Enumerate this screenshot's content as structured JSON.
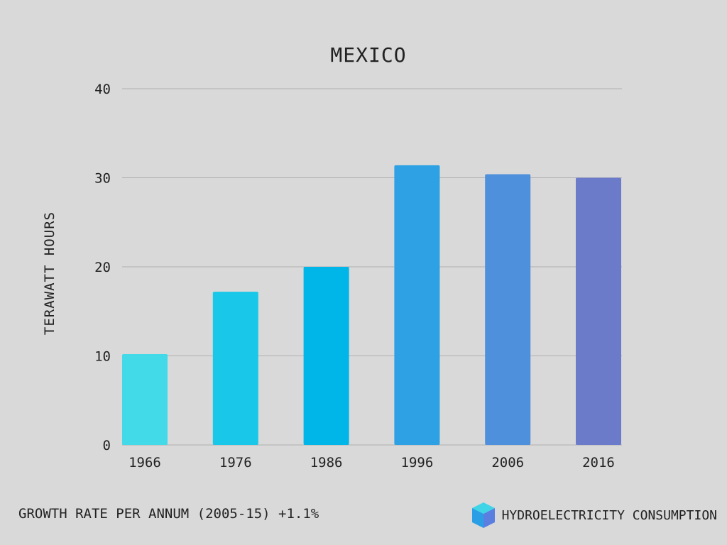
{
  "chart_data": {
    "type": "bar",
    "title": "MEXICO",
    "ylabel": "TERAWATT HOURS",
    "xlabel": "",
    "categories": [
      "1966",
      "1976",
      "1986",
      "1996",
      "2006",
      "2016"
    ],
    "values": [
      10.2,
      17.2,
      20.0,
      31.4,
      30.4,
      30.0
    ],
    "ylim": [
      0,
      40
    ],
    "yticks": [
      0,
      10,
      20,
      30,
      40
    ],
    "grid": true,
    "bar_colors": [
      "#42d9e8",
      "#19c8e9",
      "#00b6e9",
      "#2da1e4",
      "#4e90dc",
      "#6b7ac9"
    ]
  },
  "footer": {
    "growth_label": "GROWTH RATE PER ANNUM (2005-15) +1.1%",
    "brand_icon": "cube-icon",
    "brand_label": "HYDROELECTRICITY CONSUMPTION"
  },
  "colors": {
    "background": "#d9d9d9",
    "gridline": "#b0b0b0",
    "text": "#222222"
  }
}
